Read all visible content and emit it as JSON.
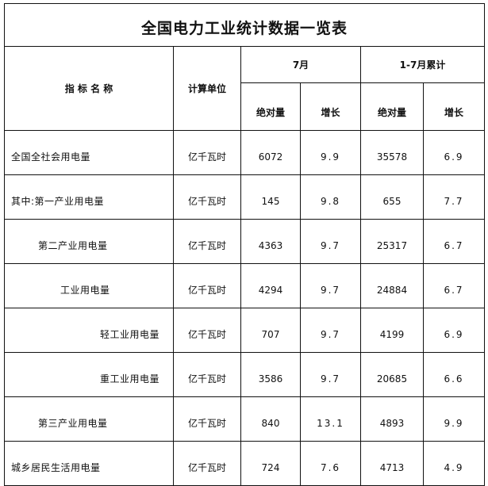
{
  "title": "全国电力工业统计数据一览表",
  "headers": {
    "indicator": "指 标 名 称",
    "unit": "计算单位",
    "month": "7月",
    "cumulative": "1-7月累计",
    "absolute": "绝对量",
    "growth": "增长"
  },
  "rows": [
    {
      "name": "全国全社会用电量",
      "indent": 0,
      "unit": "亿千瓦时",
      "month_abs": "6072",
      "month_growth": "9.9",
      "cum_abs": "35578",
      "cum_growth": "6.9"
    },
    {
      "name": "其中:第一产业用电量",
      "indent": 0,
      "unit": "亿千瓦时",
      "month_abs": "145",
      "month_growth": "9.8",
      "cum_abs": "655",
      "cum_growth": "7.7"
    },
    {
      "name": "第二产业用电量",
      "indent": 1,
      "unit": "亿千瓦时",
      "month_abs": "4363",
      "month_growth": "9.7",
      "cum_abs": "25317",
      "cum_growth": "6.7"
    },
    {
      "name": "工业用电量",
      "indent": 2,
      "unit": "亿千瓦时",
      "month_abs": "4294",
      "month_growth": "9.7",
      "cum_abs": "24884",
      "cum_growth": "6.7"
    },
    {
      "name": "轻工业用电量",
      "indent": 3,
      "unit": "亿千瓦时",
      "month_abs": "707",
      "month_growth": "9.7",
      "cum_abs": "4199",
      "cum_growth": "6.9"
    },
    {
      "name": "重工业用电量",
      "indent": 3,
      "unit": "亿千瓦时",
      "month_abs": "3586",
      "month_growth": "9.7",
      "cum_abs": "20685",
      "cum_growth": "6.6"
    },
    {
      "name": "第三产业用电量",
      "indent": 1,
      "unit": "亿千瓦时",
      "month_abs": "840",
      "month_growth": "13.1",
      "cum_abs": "4893",
      "cum_growth": "9.9"
    },
    {
      "name": "城乡居民生活用电量",
      "indent": 0,
      "unit": "亿千瓦时",
      "month_abs": "724",
      "month_growth": "7.6",
      "cum_abs": "4713",
      "cum_growth": "4.9"
    }
  ]
}
